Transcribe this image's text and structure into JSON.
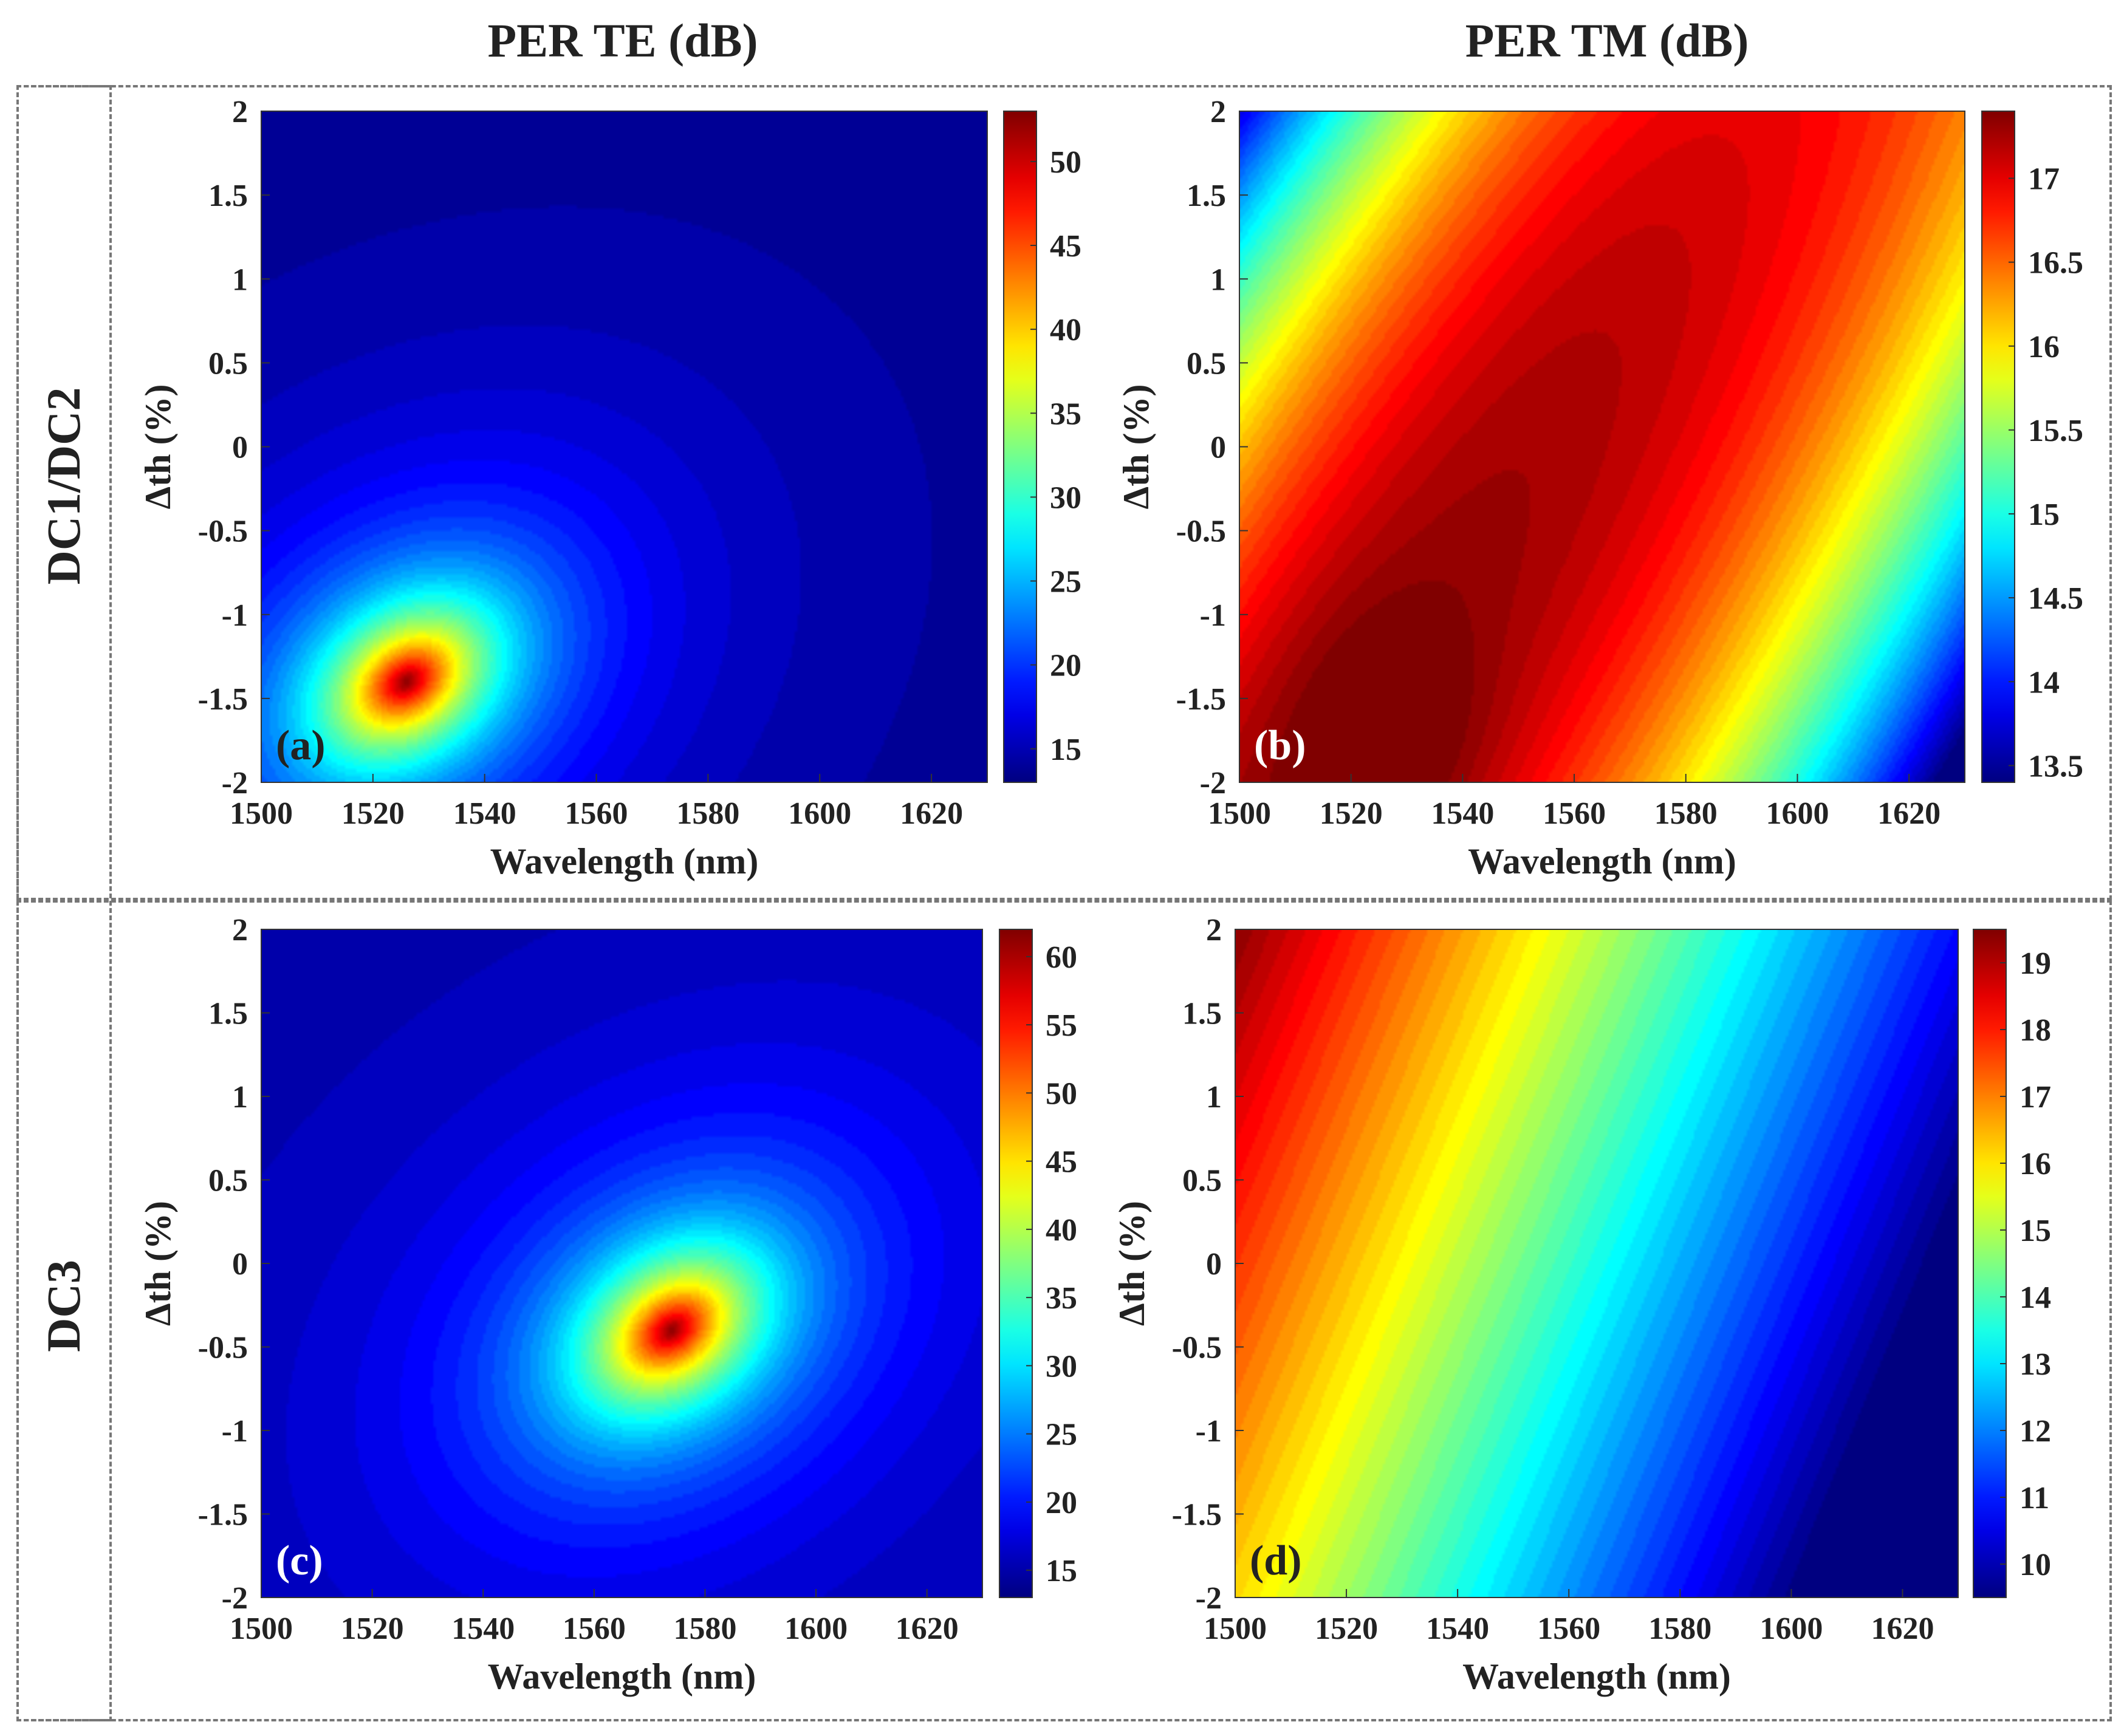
{
  "column_titles": [
    "PER TE (dB)",
    "PER TM (dB)"
  ],
  "row_titles": [
    "DC1/DC2",
    "DC3"
  ],
  "chart_data": [
    {
      "id": "a",
      "type": "heatmap",
      "panel_label": "(a)",
      "row": "DC1/DC2",
      "column": "PER TE (dB)",
      "xlabel": "Wavelength (nm)",
      "ylabel": "Δth (%)",
      "xlim": [
        1500,
        1630
      ],
      "ylim": [
        -2,
        2
      ],
      "xticks": [
        1500,
        1520,
        1540,
        1560,
        1580,
        1600,
        1620
      ],
      "yticks": [
        -2,
        -1.5,
        -1,
        -0.5,
        0,
        0.5,
        1,
        1.5,
        2
      ],
      "clim": [
        13,
        53
      ],
      "cticks": [
        15,
        20,
        25,
        30,
        35,
        40,
        45,
        50
      ],
      "colormap": "jet",
      "peak": {
        "x": 1526,
        "y": -1.4,
        "value": 53
      },
      "background_value": 13
    },
    {
      "id": "b",
      "type": "heatmap",
      "panel_label": "(b)",
      "row": "DC1/DC2",
      "column": "PER TM (dB)",
      "xlabel": "Wavelength (nm)",
      "ylabel": "Δth (%)",
      "xlim": [
        1500,
        1630
      ],
      "ylim": [
        -2,
        2
      ],
      "xticks": [
        1500,
        1520,
        1540,
        1560,
        1580,
        1600,
        1620
      ],
      "yticks": [
        -2,
        -1.5,
        -1,
        -0.5,
        0,
        0.5,
        1,
        1.5,
        2
      ],
      "clim": [
        13.4,
        17.4
      ],
      "cticks": [
        13.5,
        14,
        14.5,
        15,
        15.5,
        16,
        16.5,
        17
      ],
      "colormap": "jet",
      "peak": {
        "x": 1527,
        "y": -1.8,
        "value": 17.4
      },
      "min_region": {
        "x": 1630,
        "y": -2,
        "value": 13.4
      }
    },
    {
      "id": "c",
      "type": "heatmap",
      "panel_label": "(c)",
      "row": "DC3",
      "column": "PER TE (dB)",
      "xlabel": "Wavelength (nm)",
      "ylabel": "Δth (%)",
      "xlim": [
        1500,
        1630
      ],
      "ylim": [
        -2,
        2
      ],
      "xticks": [
        1500,
        1520,
        1540,
        1560,
        1580,
        1600,
        1620
      ],
      "yticks": [
        -2,
        -1.5,
        -1,
        -0.5,
        0,
        0.5,
        1,
        1.5,
        2
      ],
      "clim": [
        13,
        62
      ],
      "cticks": [
        15,
        20,
        25,
        30,
        35,
        40,
        45,
        50,
        55,
        60
      ],
      "colormap": "jet",
      "peak": {
        "x": 1574,
        "y": -0.4,
        "value": 62
      },
      "background_value": 14
    },
    {
      "id": "d",
      "type": "heatmap",
      "panel_label": "(d)",
      "row": "DC3",
      "column": "PER TM (dB)",
      "xlabel": "Wavelength (nm)",
      "ylabel": "Δth (%)",
      "xlim": [
        1500,
        1630
      ],
      "ylim": [
        -2,
        2
      ],
      "xticks": [
        1500,
        1520,
        1540,
        1560,
        1580,
        1600,
        1620
      ],
      "yticks": [
        -2,
        -1.5,
        -1,
        -0.5,
        0,
        0.5,
        1,
        1.5,
        2
      ],
      "clim": [
        9.5,
        19.5
      ],
      "cticks": [
        10,
        11,
        12,
        13,
        14,
        15,
        16,
        17,
        18,
        19
      ],
      "colormap": "jet",
      "max_corner": {
        "x": 1500,
        "y": 2,
        "value": 19.5
      },
      "min_corner": {
        "x": 1630,
        "y": -2,
        "value": 9.5
      }
    }
  ]
}
